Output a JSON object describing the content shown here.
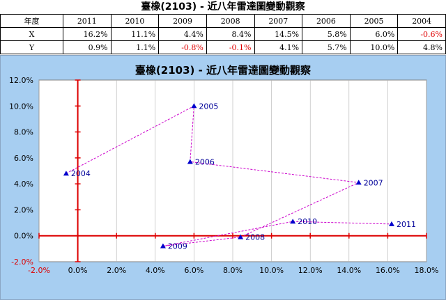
{
  "page": {
    "title": "臺橡(2103) - 近八年雷達圖變動觀察"
  },
  "table": {
    "header_label": "年度",
    "years": [
      "2011",
      "2010",
      "2009",
      "2008",
      "2007",
      "2006",
      "2005",
      "2004"
    ],
    "rows": [
      {
        "label": "X",
        "values": [
          "16.2%",
          "11.1%",
          "4.4%",
          "8.4%",
          "14.5%",
          "5.8%",
          "6.0%",
          "-0.6%"
        ]
      },
      {
        "label": "Y",
        "values": [
          "0.9%",
          "1.1%",
          "-0.8%",
          "-0.1%",
          "4.1%",
          "5.7%",
          "10.0%",
          "4.8%"
        ]
      }
    ]
  },
  "colors": {
    "background": "#a7cef1",
    "plot_area": "#ffffff",
    "axis": "#dd0000",
    "marker": "#0000cc",
    "connector": "#cc00cc",
    "negative_text": "#e00000",
    "label_text": "#000099"
  },
  "chart_data": {
    "type": "scatter",
    "title": "臺橡(2103) - 近八年雷達圖變動觀察",
    "xlabel": "",
    "ylabel": "",
    "xlim": [
      -2,
      18
    ],
    "ylim": [
      -2,
      12
    ],
    "x_ticks": [
      "-2.0%",
      "0.0%",
      "2.0%",
      "4.0%",
      "6.0%",
      "8.0%",
      "10.0%",
      "12.0%",
      "14.0%",
      "16.0%",
      "18.0%"
    ],
    "y_ticks": [
      "-2.0%",
      "0.0%",
      "2.0%",
      "4.0%",
      "6.0%",
      "8.0%",
      "10.0%",
      "12.0%"
    ],
    "grid": "vertical",
    "points": [
      {
        "label": "2004",
        "x": -0.6,
        "y": 4.8
      },
      {
        "label": "2005",
        "x": 6.0,
        "y": 10.0
      },
      {
        "label": "2006",
        "x": 5.8,
        "y": 5.7
      },
      {
        "label": "2007",
        "x": 14.5,
        "y": 4.1
      },
      {
        "label": "2008",
        "x": 8.4,
        "y": -0.1
      },
      {
        "label": "2009",
        "x": 4.4,
        "y": -0.8
      },
      {
        "label": "2010",
        "x": 11.1,
        "y": 1.1
      },
      {
        "label": "2011",
        "x": 16.2,
        "y": 0.9
      }
    ]
  }
}
